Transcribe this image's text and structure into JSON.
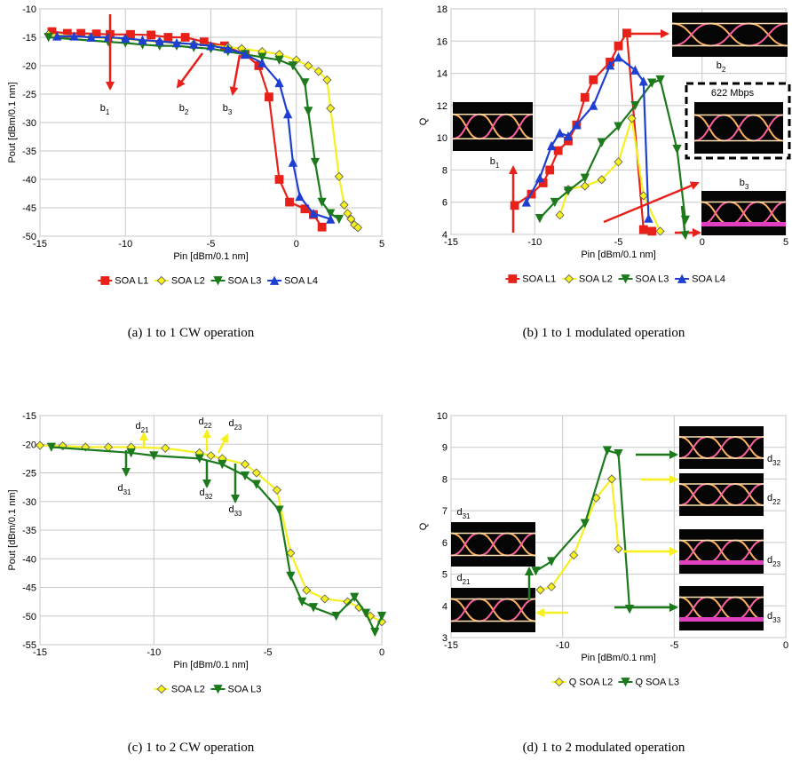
{
  "chart_data": [
    {
      "type": "line",
      "xlabel": "Pin [dBm/0.1 nm]",
      "ylabel": "Pout [dBm/0.1 nm]",
      "caption": "(a) 1 to 1 CW operation",
      "xlim": [
        -15,
        5
      ],
      "xticks": [
        -15,
        -10,
        -5,
        0,
        5
      ],
      "ylim": [
        -50,
        -10
      ],
      "yticks": [
        -10,
        -15,
        -20,
        -25,
        -30,
        -35,
        -40,
        -45,
        -50
      ],
      "grid": true,
      "series": [
        {
          "name": "SOA L1",
          "color": "#e8201a",
          "marker": "square",
          "x": [
            -14.3,
            -13.4,
            -12.6,
            -11.7,
            -10.9,
            -9.7,
            -8.5,
            -7.5,
            -6.5,
            -5.4,
            -4.2,
            -3,
            -2.2,
            -1.6,
            -1,
            -0.4,
            0.5,
            1,
            1.5
          ],
          "values": [
            -14,
            -14.3,
            -14.3,
            -14.4,
            -14.5,
            -14.5,
            -14.6,
            -15,
            -15,
            -15.8,
            -16.5,
            -18,
            -20,
            -25.5,
            -40,
            -44,
            -45.2,
            -46.2,
            -48.4
          ]
        },
        {
          "name": "SOA L2",
          "color": "#f5f01e",
          "marker": "diamond",
          "x": [
            -14.5,
            -12,
            -10,
            -8,
            -6,
            -4,
            -3.2,
            -2,
            -1,
            0,
            0.7,
            1.3,
            1.8,
            2,
            2.5,
            2.8,
            3,
            3.2,
            3.4,
            3.6
          ],
          "values": [
            -14.5,
            -15,
            -15.3,
            -15.8,
            -16.2,
            -16.7,
            -17,
            -17.5,
            -18,
            -19,
            -20,
            -21,
            -22.5,
            -27.5,
            -39.5,
            -44.5,
            -46,
            -47,
            -48,
            -48.5
          ]
        },
        {
          "name": "SOA L3",
          "color": "#1c7a1c",
          "marker": "tri-down",
          "x": [
            -14.5,
            -11,
            -10,
            -9,
            -8,
            -7,
            -6,
            -5,
            -4,
            -3,
            -2,
            -1,
            -0.2,
            0.5,
            0.7,
            1.1,
            1.5,
            2,
            2.5
          ],
          "values": [
            -15,
            -15.8,
            -16,
            -16.3,
            -16.5,
            -16.5,
            -16.8,
            -17,
            -17.5,
            -18,
            -18.5,
            -19,
            -20,
            -23,
            -28,
            -37,
            -44,
            -46,
            -47
          ]
        },
        {
          "name": "SOA L4",
          "color": "#1f3fd0",
          "marker": "tri-up",
          "x": [
            -14,
            -13,
            -12,
            -11,
            -10,
            -9,
            -8,
            -7,
            -6,
            -5,
            -4,
            -3,
            -2,
            -1,
            -0.5,
            -0.2,
            0.2,
            1,
            2
          ],
          "values": [
            -14.8,
            -14.8,
            -15,
            -15,
            -15.2,
            -15.5,
            -15.7,
            -16,
            -16.2,
            -16.5,
            -17,
            -18,
            -19.5,
            -23,
            -28.5,
            -37,
            -43,
            -46,
            -47
          ]
        }
      ],
      "annotations": [
        {
          "base": "b",
          "sub": "1"
        },
        {
          "base": "b",
          "sub": "2"
        },
        {
          "base": "b",
          "sub": "3"
        }
      ]
    },
    {
      "type": "line",
      "xlabel": "Pin [dBm/0.1 nm]",
      "ylabel": "Q",
      "caption": "(b) 1 to 1 modulated operation",
      "xlim": [
        -15,
        5
      ],
      "xticks": [
        -15,
        -10,
        -5,
        0,
        5
      ],
      "ylim": [
        4,
        18
      ],
      "yticks": [
        4,
        6,
        8,
        10,
        12,
        14,
        16,
        18
      ],
      "grid": true,
      "series": [
        {
          "name": "SOA L1",
          "color": "#e8201a",
          "marker": "square",
          "x": [
            -11.2,
            -10.2,
            -9.5,
            -9.1,
            -8.6,
            -8,
            -7.5,
            -7,
            -6.5,
            -5.5,
            -5,
            -4.5,
            -3.5,
            -3
          ],
          "values": [
            5.8,
            6.5,
            7.2,
            8,
            9.2,
            9.8,
            10.8,
            12.5,
            13.6,
            14.7,
            15.7,
            16.5,
            4.3,
            4.2
          ]
        },
        {
          "name": "SOA L2",
          "color": "#f5f01e",
          "marker": "diamond",
          "x": [
            -8.5,
            -8,
            -7,
            -6,
            -5,
            -4.2,
            -3.5,
            -2.5
          ],
          "values": [
            5.2,
            6.8,
            7,
            7.4,
            8.5,
            11.2,
            6.4,
            4.2
          ]
        },
        {
          "name": "SOA L3",
          "color": "#1c7a1c",
          "marker": "tri-down",
          "x": [
            -9.7,
            -8.8,
            -8,
            -7,
            -6,
            -5,
            -4,
            -3,
            -2.5,
            -1.5,
            -1
          ],
          "values": [
            5,
            6,
            6.7,
            7.5,
            9.7,
            10.7,
            12,
            13.4,
            13.6,
            9.3,
            4.9
          ]
        },
        {
          "name": "SOA L4",
          "color": "#1f3fd0",
          "marker": "tri-up",
          "x": [
            -10.5,
            -9.7,
            -9,
            -8.5,
            -8,
            -7.5,
            -6.5,
            -5.5,
            -5,
            -4,
            -3.5,
            -3.2
          ],
          "values": [
            6,
            7.5,
            9.5,
            10.3,
            10.1,
            10.8,
            12,
            14.5,
            15,
            14.2,
            13.5,
            5
          ]
        }
      ],
      "annotations": [
        {
          "base": "b",
          "sub": "1"
        },
        {
          "base": "b",
          "sub": "2"
        },
        {
          "base": "b",
          "sub": "3"
        },
        {
          "base": "622 Mbps"
        }
      ]
    },
    {
      "type": "line",
      "xlabel": "Pin [dBm/0.1 nm]",
      "ylabel": "Pout [dBm/0.1 nm]",
      "caption": "(c) 1 to 2 CW operation",
      "xlim": [
        -15,
        0
      ],
      "xticks": [
        -15,
        -10,
        -5,
        0
      ],
      "ylim": [
        -55,
        -15
      ],
      "yticks": [
        -15,
        -20,
        -25,
        -30,
        -35,
        -40,
        -45,
        -50,
        -55
      ],
      "grid": true,
      "series": [
        {
          "name": "SOA L2",
          "color": "#f5f01e",
          "marker": "diamond",
          "x": [
            -15,
            -14,
            -13,
            -12,
            -11,
            -9.5,
            -8,
            -7.5,
            -7,
            -6,
            -5.5,
            -4.6,
            -4,
            -3.3,
            -2.5,
            -1.5,
            -1,
            -0.5,
            0
          ],
          "values": [
            -20.2,
            -20.3,
            -20.5,
            -20.5,
            -20.5,
            -20.7,
            -21.5,
            -22,
            -22.5,
            -23.5,
            -25,
            -28,
            -39,
            -45.5,
            -47,
            -47.5,
            -48.5,
            -50,
            -51
          ]
        },
        {
          "name": "SOA L3",
          "color": "#1c7a1c",
          "marker": "tri-down",
          "x": [
            -14.5,
            -11,
            -10,
            -8,
            -7,
            -6,
            -5.5,
            -4.5,
            -4,
            -3.5,
            -3,
            -2,
            -1.2,
            -0.7,
            -0.3,
            0
          ],
          "values": [
            -20.5,
            -21.5,
            -22,
            -22.5,
            -23.5,
            -25.5,
            -27,
            -31.5,
            -43,
            -47.5,
            -48.5,
            -50,
            -46.7,
            -49.5,
            -52.8,
            -50
          ]
        }
      ],
      "annotations": [
        {
          "base": "d",
          "sub": "21"
        },
        {
          "base": "d",
          "sub": "31"
        },
        {
          "base": "d",
          "sub": "22"
        },
        {
          "base": "d",
          "sub": "23"
        },
        {
          "base": "d",
          "sub": "32"
        },
        {
          "base": "d",
          "sub": "33"
        }
      ]
    },
    {
      "type": "line",
      "xlabel": "Pin [dBm/0.1 nm]",
      "ylabel": "Q",
      "caption": "(d) 1 to 2 modulated operation",
      "xlim": [
        -15,
        0
      ],
      "xticks": [
        -15,
        -10,
        -5,
        0
      ],
      "ylim": [
        3,
        10
      ],
      "yticks": [
        3,
        4,
        5,
        6,
        7,
        8,
        9,
        10
      ],
      "grid": true,
      "series": [
        {
          "name": "Q SOA L2",
          "color": "#f5f01e",
          "marker": "diamond",
          "x": [
            -11,
            -10.5,
            -9.5,
            -8.5,
            -7.8,
            -7.5
          ],
          "values": [
            4.5,
            4.6,
            5.6,
            7.4,
            8,
            5.8
          ]
        },
        {
          "name": "Q SOA L3",
          "color": "#1c7a1c",
          "marker": "tri-down",
          "x": [
            -11.2,
            -10.5,
            -9,
            -8,
            -7.5,
            -7
          ],
          "values": [
            5.1,
            5.4,
            6.6,
            8.9,
            8.8,
            3.9
          ]
        }
      ],
      "annotations": [
        {
          "base": "d",
          "sub": "31"
        },
        {
          "base": "d",
          "sub": "21"
        },
        {
          "base": "d",
          "sub": "32"
        },
        {
          "base": "d",
          "sub": "22"
        },
        {
          "base": "d",
          "sub": "23"
        },
        {
          "base": "d",
          "sub": "33"
        }
      ]
    }
  ]
}
